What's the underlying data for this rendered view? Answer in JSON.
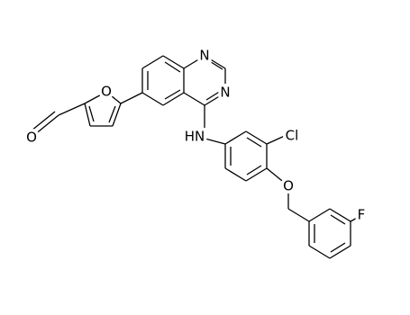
{
  "atoms": {
    "quinazoline_n1": "N",
    "quinazoline_n3": "N",
    "furan_o": "O",
    "aldehyde_o": "O",
    "amine": "HN",
    "chloro": "Cl",
    "ether_o": "O",
    "fluoro": "F"
  }
}
